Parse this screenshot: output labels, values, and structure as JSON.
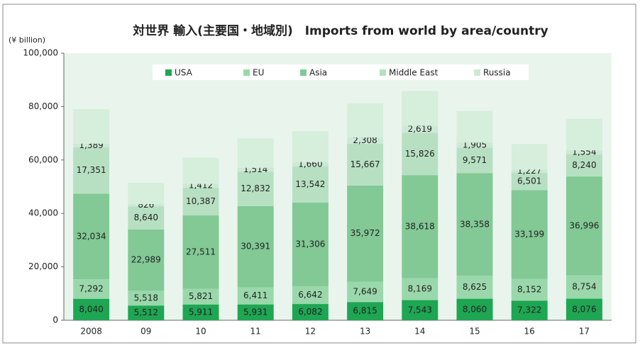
{
  "chart_data": {
    "type": "stacked_bar",
    "title": "対世界 輸入(主要国・地域別)　Imports from world by area/country",
    "y_label": "(¥ billion)",
    "categories": [
      "2008",
      "09",
      "10",
      "11",
      "12",
      "13",
      "14",
      "15",
      "16",
      "17"
    ],
    "series": [
      {
        "name": "USA",
        "color": "#1ea653",
        "values": [
          8040,
          5512,
          5911,
          5931,
          6082,
          6815,
          7543,
          8060,
          7322,
          8076
        ],
        "value_labels": [
          "8,040",
          "5,512",
          "5,911",
          "5,931",
          "6,082",
          "6,815",
          "7,543",
          "8,060",
          "7,322",
          "8,076"
        ]
      },
      {
        "name": "EU",
        "color": "#9ad8ab",
        "values": [
          7292,
          5518,
          5821,
          6411,
          6642,
          7649,
          8169,
          8625,
          8152,
          8754
        ],
        "value_labels": [
          "7,292",
          "5,518",
          "5,821",
          "6,411",
          "6,642",
          "7,649",
          "8,169",
          "8,625",
          "8,152",
          "8,754"
        ]
      },
      {
        "name": "Asia",
        "color": "#82c995",
        "values": [
          32034,
          22989,
          27511,
          30391,
          31306,
          35972,
          38618,
          38358,
          33199,
          36996
        ],
        "value_labels": [
          "32,034",
          "22,989",
          "27,511",
          "30,391",
          "31,306",
          "35,972",
          "38,618",
          "38,358",
          "33,199",
          "36,996"
        ]
      },
      {
        "name": "Middle East",
        "color": "#b7e0c2",
        "values": [
          17351,
          8640,
          10387,
          12832,
          13542,
          15667,
          15826,
          9571,
          6501,
          8240
        ],
        "value_labels": [
          "17,351",
          "8,640",
          "10,387",
          "12,832",
          "13,542",
          "15,667",
          "15,826",
          "9,571",
          "6,501",
          "8,240"
        ]
      },
      {
        "name": "Russia",
        "color": "#cde9d5",
        "values": [
          1389,
          826,
          1412,
          1514,
          1660,
          2308,
          2619,
          1905,
          1227,
          1554
        ],
        "value_labels": [
          "1,389",
          "826",
          "1,412",
          "1,514",
          "1,660",
          "2,308",
          "2,619",
          "1,905",
          "1,227",
          "1,554"
        ]
      },
      {
        "color": "#d6eedc",
        "values": [
          12900,
          8000,
          9800,
          11000,
          11500,
          12800,
          13100,
          11900,
          9600,
          11800
        ]
      }
    ],
    "ylim": [
      0,
      100000
    ],
    "yticks": [
      0,
      {
        "value": 20000,
        "label": "20,000"
      },
      {
        "value": 40000,
        "label": "40,000"
      },
      {
        "value": 60000,
        "label": "60,000"
      },
      {
        "value": 80000,
        "label": "80,000"
      },
      {
        "value": 100000,
        "label": "100,000"
      }
    ],
    "legend": "top",
    "plot_background": "#e9f5ec"
  }
}
